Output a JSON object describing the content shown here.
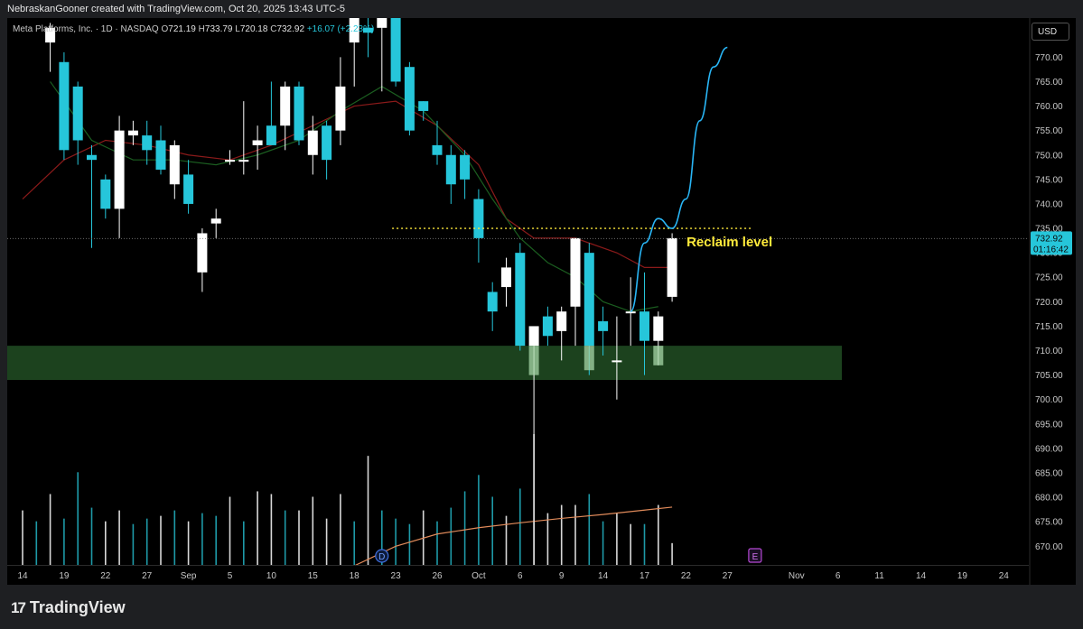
{
  "banner": "NebraskanGooner created with TradingView.com, Oct 20, 2025 13:43 UTC-5",
  "legend": {
    "symbol": "Meta Platforms, Inc. · 1D · NASDAQ",
    "open_label": "O",
    "open": "721.19",
    "high_label": "H",
    "high": "733.79",
    "low_label": "L",
    "low": "720.18",
    "close_label": "C",
    "close": "732.92",
    "change": "+16.07 (+2.23%)"
  },
  "currency_button": "USD",
  "footer_logo": "TradingView",
  "logo_mark": "17",
  "colors": {
    "up": "#ffffff",
    "down": "#26c6da",
    "ma_short": "#1b5e20",
    "ma_long": "#8b1a1a",
    "projection": "#29b6f6",
    "zone": "#1e4620",
    "volume_ma": "#e08a5a",
    "reclaim_line": "#ffeb3b",
    "background": "#000000"
  },
  "chart_data": {
    "type": "candlestick",
    "y_axis": {
      "min": 666,
      "max": 778,
      "ticks": [
        770,
        765,
        760,
        755,
        750,
        745,
        740,
        735,
        730,
        725,
        720,
        715,
        710,
        705,
        700,
        695,
        690,
        685,
        680,
        675,
        670
      ],
      "tick_labels": [
        "770.00",
        "765.00",
        "760.00",
        "755.00",
        "750.00",
        "745.00",
        "740.00",
        "735.00",
        "730.00",
        "725.00",
        "720.00",
        "715.00",
        "710.00",
        "705.00",
        "700.00",
        "695.00",
        "690.00",
        "685.00",
        "680.00",
        "675.00",
        "670.00"
      ]
    },
    "x_axis_labels": [
      {
        "label": "14",
        "day": 0
      },
      {
        "label": "19",
        "day": 3
      },
      {
        "label": "22",
        "day": 6
      },
      {
        "label": "27",
        "day": 9
      },
      {
        "label": "Sep",
        "day": 12
      },
      {
        "label": "5",
        "day": 15
      },
      {
        "label": "10",
        "day": 18
      },
      {
        "label": "15",
        "day": 21
      },
      {
        "label": "18",
        "day": 24
      },
      {
        "label": "23",
        "day": 27
      },
      {
        "label": "26",
        "day": 30
      },
      {
        "label": "Oct",
        "day": 33
      },
      {
        "label": "6",
        "day": 36
      },
      {
        "label": "9",
        "day": 39
      },
      {
        "label": "14",
        "day": 42
      },
      {
        "label": "17",
        "day": 45
      },
      {
        "label": "22",
        "day": 48
      },
      {
        "label": "27",
        "day": 51
      },
      {
        "label": "Nov",
        "day": 56
      },
      {
        "label": "6",
        "day": 59
      },
      {
        "label": "11",
        "day": 62
      },
      {
        "label": "14",
        "day": 65
      },
      {
        "label": "19",
        "day": 68
      },
      {
        "label": "24",
        "day": 71
      }
    ],
    "candles": [
      {
        "i": 2,
        "o": 773,
        "h": 777,
        "l": 767,
        "c": 776
      },
      {
        "i": 3,
        "o": 769,
        "h": 771,
        "l": 749,
        "c": 751
      },
      {
        "i": 4,
        "o": 764,
        "h": 765,
        "l": 748,
        "c": 753
      },
      {
        "i": 5,
        "o": 750,
        "h": 752,
        "l": 731,
        "c": 749
      },
      {
        "i": 6,
        "o": 745,
        "h": 746,
        "l": 737,
        "c": 739
      },
      {
        "i": 7,
        "o": 739,
        "h": 758,
        "l": 733,
        "c": 755
      },
      {
        "i": 8,
        "o": 754,
        "h": 757,
        "l": 752,
        "c": 755
      },
      {
        "i": 9,
        "o": 754,
        "h": 757,
        "l": 748,
        "c": 751
      },
      {
        "i": 10,
        "o": 753,
        "h": 756,
        "l": 746,
        "c": 747
      },
      {
        "i": 11,
        "o": 744,
        "h": 753,
        "l": 741,
        "c": 752
      },
      {
        "i": 12,
        "o": 746,
        "h": 749,
        "l": 738,
        "c": 740
      },
      {
        "i": 13,
        "o": 726,
        "h": 735,
        "l": 722,
        "c": 734
      },
      {
        "i": 14,
        "o": 736,
        "h": 739,
        "l": 733,
        "c": 737
      },
      {
        "i": 15,
        "o": 749,
        "h": 751,
        "l": 748,
        "c": 749
      },
      {
        "i": 16,
        "o": 749,
        "h": 761,
        "l": 746,
        "c": 749
      },
      {
        "i": 17,
        "o": 752,
        "h": 756,
        "l": 747,
        "c": 753
      },
      {
        "i": 18,
        "o": 756,
        "h": 765,
        "l": 753,
        "c": 752
      },
      {
        "i": 19,
        "o": 756,
        "h": 765,
        "l": 751,
        "c": 764
      },
      {
        "i": 20,
        "o": 764,
        "h": 765,
        "l": 752,
        "c": 753
      },
      {
        "i": 21,
        "o": 750,
        "h": 758,
        "l": 746,
        "c": 755
      },
      {
        "i": 22,
        "o": 756,
        "h": 757,
        "l": 745,
        "c": 749
      },
      {
        "i": 23,
        "o": 755,
        "h": 770,
        "l": 752,
        "c": 764
      },
      {
        "i": 24,
        "o": 773,
        "h": 779,
        "l": 764,
        "c": 778
      },
      {
        "i": 25,
        "o": 776,
        "h": 778,
        "l": 770,
        "c": 775
      },
      {
        "i": 26,
        "o": 776,
        "h": 779,
        "l": 763,
        "c": 778
      },
      {
        "i": 27,
        "o": 779,
        "h": 780,
        "l": 764,
        "c": 765
      },
      {
        "i": 28,
        "o": 768,
        "h": 769,
        "l": 754,
        "c": 755
      },
      {
        "i": 29,
        "o": 761,
        "h": 761,
        "l": 757,
        "c": 759
      },
      {
        "i": 30,
        "o": 752,
        "h": 757,
        "l": 748,
        "c": 750
      },
      {
        "i": 31,
        "o": 750,
        "h": 752,
        "l": 740,
        "c": 744
      },
      {
        "i": 32,
        "o": 750,
        "h": 751,
        "l": 741,
        "c": 745
      },
      {
        "i": 33,
        "o": 741,
        "h": 743,
        "l": 728,
        "c": 733
      },
      {
        "i": 34,
        "o": 722,
        "h": 724,
        "l": 714,
        "c": 718
      },
      {
        "i": 35,
        "o": 723,
        "h": 729,
        "l": 719,
        "c": 727
      },
      {
        "i": 36,
        "o": 730,
        "h": 732,
        "l": 710,
        "c": 711
      },
      {
        "i": 37,
        "o": 711,
        "h": 715,
        "l": 666,
        "c": 715
      },
      {
        "i": 38,
        "o": 717,
        "h": 719,
        "l": 711,
        "c": 713
      },
      {
        "i": 39,
        "o": 714,
        "h": 719,
        "l": 708,
        "c": 718
      },
      {
        "i": 40,
        "o": 719,
        "h": 733,
        "l": 711,
        "c": 733
      },
      {
        "i": 41,
        "o": 730,
        "h": 732,
        "l": 705,
        "c": 711
      },
      {
        "i": 42,
        "o": 716,
        "h": 719,
        "l": 709,
        "c": 714
      },
      {
        "i": 43,
        "o": 708,
        "h": 717,
        "l": 700,
        "c": 708
      },
      {
        "i": 44,
        "o": 718,
        "h": 725,
        "l": 711,
        "c": 718
      },
      {
        "i": 45,
        "o": 718,
        "h": 726,
        "l": 705,
        "c": 712
      },
      {
        "i": 46,
        "o": 712,
        "h": 718,
        "l": 707,
        "c": 717
      },
      {
        "i": 47,
        "o": 721,
        "h": 734,
        "l": 720,
        "c": 733
      }
    ],
    "zone_lows": [
      {
        "i": 37,
        "low": 705
      },
      {
        "i": 41,
        "low": 706
      },
      {
        "i": 46,
        "low": 707
      }
    ],
    "ma_short": [
      [
        2,
        765
      ],
      [
        5,
        753
      ],
      [
        8,
        749
      ],
      [
        11,
        749
      ],
      [
        14,
        748
      ],
      [
        17,
        750
      ],
      [
        20,
        753
      ],
      [
        23,
        759
      ],
      [
        26,
        764
      ],
      [
        29,
        759
      ],
      [
        32,
        750
      ],
      [
        34,
        741
      ],
      [
        36,
        733
      ],
      [
        38,
        728
      ],
      [
        40,
        725
      ],
      [
        42,
        720
      ],
      [
        44,
        718
      ],
      [
        46,
        719
      ]
    ],
    "ma_long": [
      [
        0,
        741
      ],
      [
        3,
        749
      ],
      [
        6,
        753
      ],
      [
        9,
        752
      ],
      [
        12,
        750
      ],
      [
        15,
        749
      ],
      [
        18,
        752
      ],
      [
        21,
        756
      ],
      [
        24,
        760
      ],
      [
        27,
        761
      ],
      [
        30,
        756
      ],
      [
        33,
        748
      ],
      [
        35,
        737
      ],
      [
        37,
        733
      ],
      [
        40,
        733
      ],
      [
        43,
        730
      ],
      [
        45,
        727
      ],
      [
        47,
        727
      ]
    ],
    "projection": [
      [
        44,
        718
      ],
      [
        45,
        732
      ],
      [
        46,
        737
      ],
      [
        47,
        735
      ],
      [
        48,
        741
      ],
      [
        49,
        757
      ],
      [
        50,
        768
      ],
      [
        51,
        772
      ]
    ],
    "reclaim_level": 735,
    "reclaim_label": "Reclaim level",
    "zone": {
      "low": 704,
      "high": 711
    },
    "last_price": {
      "value": 732.92,
      "label": "732.92",
      "countdown": "01:16:42"
    },
    "volume": [
      {
        "i": 0,
        "v": 20,
        "d": "up"
      },
      {
        "i": 1,
        "v": 16,
        "d": "down"
      },
      {
        "i": 2,
        "v": 26,
        "d": "up"
      },
      {
        "i": 3,
        "v": 17,
        "d": "down"
      },
      {
        "i": 4,
        "v": 34,
        "d": "down"
      },
      {
        "i": 5,
        "v": 21,
        "d": "down"
      },
      {
        "i": 6,
        "v": 16,
        "d": "up"
      },
      {
        "i": 7,
        "v": 20,
        "d": "up"
      },
      {
        "i": 8,
        "v": 15,
        "d": "down"
      },
      {
        "i": 9,
        "v": 17,
        "d": "down"
      },
      {
        "i": 10,
        "v": 18,
        "d": "up"
      },
      {
        "i": 11,
        "v": 20,
        "d": "down"
      },
      {
        "i": 12,
        "v": 16,
        "d": "up"
      },
      {
        "i": 13,
        "v": 19,
        "d": "down"
      },
      {
        "i": 14,
        "v": 18,
        "d": "down"
      },
      {
        "i": 15,
        "v": 25,
        "d": "up"
      },
      {
        "i": 16,
        "v": 16,
        "d": "down"
      },
      {
        "i": 17,
        "v": 27,
        "d": "up"
      },
      {
        "i": 18,
        "v": 26,
        "d": "up"
      },
      {
        "i": 19,
        "v": 20,
        "d": "down"
      },
      {
        "i": 20,
        "v": 20,
        "d": "up"
      },
      {
        "i": 21,
        "v": 25,
        "d": "up"
      },
      {
        "i": 22,
        "v": 17,
        "d": "up"
      },
      {
        "i": 23,
        "v": 26,
        "d": "up"
      },
      {
        "i": 24,
        "v": 16,
        "d": "down"
      },
      {
        "i": 25,
        "v": 40,
        "d": "up"
      },
      {
        "i": 26,
        "v": 20,
        "d": "down"
      },
      {
        "i": 27,
        "v": 17,
        "d": "down"
      },
      {
        "i": 28,
        "v": 15,
        "d": "down"
      },
      {
        "i": 29,
        "v": 20,
        "d": "up"
      },
      {
        "i": 30,
        "v": 16,
        "d": "down"
      },
      {
        "i": 31,
        "v": 21,
        "d": "down"
      },
      {
        "i": 32,
        "v": 27,
        "d": "down"
      },
      {
        "i": 33,
        "v": 33,
        "d": "down"
      },
      {
        "i": 34,
        "v": 25,
        "d": "down"
      },
      {
        "i": 35,
        "v": 18,
        "d": "up"
      },
      {
        "i": 36,
        "v": 28,
        "d": "down"
      },
      {
        "i": 37,
        "v": 48,
        "d": "up"
      },
      {
        "i": 38,
        "v": 19,
        "d": "up"
      },
      {
        "i": 39,
        "v": 22,
        "d": "up"
      },
      {
        "i": 40,
        "v": 22,
        "d": "up"
      },
      {
        "i": 41,
        "v": 26,
        "d": "down"
      },
      {
        "i": 42,
        "v": 16,
        "d": "down"
      },
      {
        "i": 43,
        "v": 19,
        "d": "up"
      },
      {
        "i": 44,
        "v": 15,
        "d": "up"
      },
      {
        "i": 45,
        "v": 15,
        "d": "down"
      },
      {
        "i": 46,
        "v": 22,
        "d": "up"
      },
      {
        "i": 47,
        "v": 8,
        "d": "up"
      }
    ],
    "volume_ma": [
      [
        24,
        666
      ],
      [
        27,
        670
      ],
      [
        30,
        672.5
      ],
      [
        33,
        673.8
      ],
      [
        36,
        674.8
      ],
      [
        39,
        675.7
      ],
      [
        42,
        676.5
      ],
      [
        45,
        677.4
      ],
      [
        47,
        678
      ]
    ],
    "event_markers": [
      {
        "label": "D",
        "i": 26
      },
      {
        "label": "E",
        "i": 53
      }
    ]
  }
}
